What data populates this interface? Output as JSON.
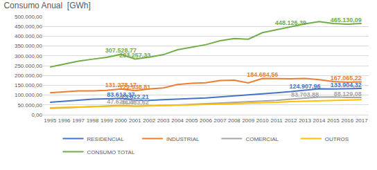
{
  "chart_data": {
    "type": "line",
    "title": "Consumo Anual  [GWh]",
    "categories": [
      "1995",
      "1996",
      "1997",
      "1998",
      "1999",
      "2000",
      "2001",
      "2002",
      "2003",
      "2004",
      "2005",
      "2006",
      "2007",
      "2008",
      "2009",
      "2010",
      "2011",
      "2012",
      "2013",
      "2014",
      "2015",
      "2016",
      "2017"
    ],
    "series": [
      {
        "name": "RESIDENCIAL",
        "color": "#4472C4",
        "values": [
          63600,
          68600,
          74100,
          79400,
          81300,
          83613.37,
          73622.21,
          72700,
          76200,
          78600,
          83200,
          85800,
          90900,
          95600,
          101800,
          107200,
          111900,
          117600,
          124907.96,
          132300,
          131200,
          132900,
          133904.32
        ],
        "value_labels": [
          null,
          null,
          null,
          null,
          null,
          "83.613,37",
          "73.622,21",
          null,
          null,
          null,
          null,
          null,
          null,
          null,
          null,
          null,
          null,
          null,
          "124.907,96",
          null,
          null,
          null,
          "133.904,32"
        ]
      },
      {
        "name": "INDUSTRIAL",
        "color": "#ED7D31",
        "values": [
          111600,
          117000,
          121700,
          121900,
          123900,
          131278.17,
          122538.81,
          130900,
          136200,
          154200,
          160000,
          163100,
          174400,
          175800,
          161800,
          184684.56,
          183600,
          183500,
          184700,
          179100,
          169300,
          165300,
          167065.22
        ],
        "value_labels": [
          null,
          null,
          null,
          null,
          null,
          "131.278,17",
          "122.538,81",
          null,
          null,
          null,
          null,
          null,
          null,
          null,
          null,
          "184.684,56",
          null,
          null,
          null,
          null,
          null,
          null,
          "167.065,22"
        ]
      },
      {
        "name": "COMERCIAL",
        "color": "#A5A5A5",
        "values": [
          32300,
          34400,
          38200,
          41500,
          43600,
          47626.19,
          44433.62,
          45200,
          47500,
          49700,
          53000,
          55400,
          58600,
          61800,
          65200,
          69200,
          73500,
          79200,
          83703.88,
          89800,
          90800,
          87900,
          88129.08
        ],
        "value_labels": [
          null,
          null,
          null,
          null,
          null,
          "47.626,19",
          "44.433,62",
          null,
          null,
          null,
          null,
          null,
          null,
          null,
          null,
          null,
          null,
          null,
          "83.703,88",
          null,
          null,
          null,
          "88.129,08"
        ]
      },
      {
        "name": "OUTROS",
        "color": "#FFC000",
        "values": [
          35000,
          37000,
          38000,
          41000,
          43000,
          45000,
          43000,
          44000,
          46000,
          48000,
          50000,
          52000,
          54000,
          56000,
          58000,
          60000,
          63000,
          67000,
          69000,
          72000,
          74000,
          75000,
          77000
        ]
      },
      {
        "name": "CONSUMO TOTAL",
        "color": "#70AD47",
        "values": [
          243000,
          258000,
          273000,
          283000,
          292000,
          307528.77,
          283257.33,
          293000,
          306000,
          331000,
          345000,
          357000,
          377000,
          388000,
          385000,
          418000,
          433000,
          448126.39,
          463000,
          474000,
          465000,
          461000,
          465130.09
        ],
        "value_labels": [
          null,
          null,
          null,
          null,
          null,
          "307.528,77",
          "283.257,33",
          null,
          null,
          null,
          null,
          null,
          null,
          null,
          null,
          null,
          null,
          "448.126,39",
          null,
          null,
          null,
          null,
          "465.130,09"
        ]
      }
    ],
    "ylim": [
      0,
      500000
    ],
    "yticks": [
      {
        "value": 0,
        "label": "0,00"
      },
      {
        "value": 50000,
        "label": "50.000,00"
      },
      {
        "value": 100000,
        "label": "100.000,00"
      },
      {
        "value": 150000,
        "label": "150.000,00"
      },
      {
        "value": 200000,
        "label": "200.000,00"
      },
      {
        "value": 250000,
        "label": "250.000,00"
      },
      {
        "value": 300000,
        "label": "300.000,00"
      },
      {
        "value": 350000,
        "label": "350.000,00"
      },
      {
        "value": 400000,
        "label": "400.000,00"
      },
      {
        "value": 450000,
        "label": "450.000,00"
      },
      {
        "value": 500000,
        "label": "500.000,00"
      }
    ],
    "grid": true,
    "legend": "bottom"
  }
}
